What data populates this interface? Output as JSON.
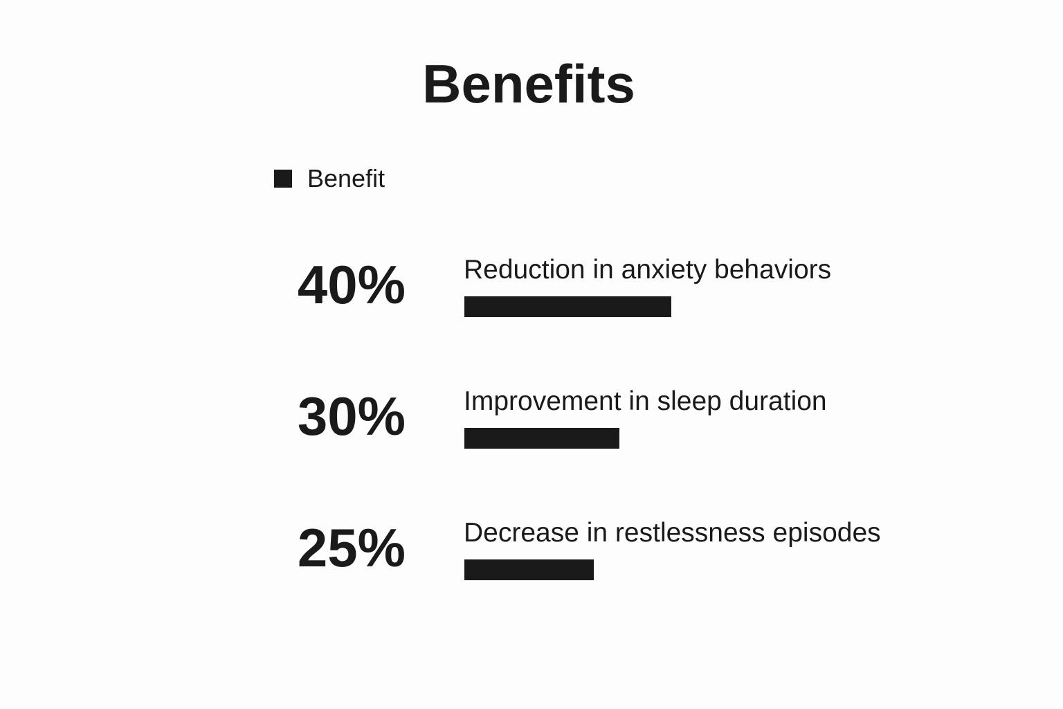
{
  "chart_data": {
    "type": "bar",
    "orientation": "horizontal",
    "title": "Benefits",
    "legend": {
      "position": "top-left",
      "entries": [
        "Benefit"
      ]
    },
    "series": [
      {
        "name": "Benefit",
        "color": "#1a1a1a",
        "values": [
          40,
          30,
          25
        ],
        "value_labels": [
          "40%",
          "30%",
          "25%"
        ]
      }
    ],
    "categories": [
      "Reduction in anxiety behaviors",
      "Improvement in sleep duration",
      "Decrease in restlessness episodes"
    ],
    "xlim": [
      0,
      100
    ],
    "grid": false,
    "axes_visible": false
  }
}
